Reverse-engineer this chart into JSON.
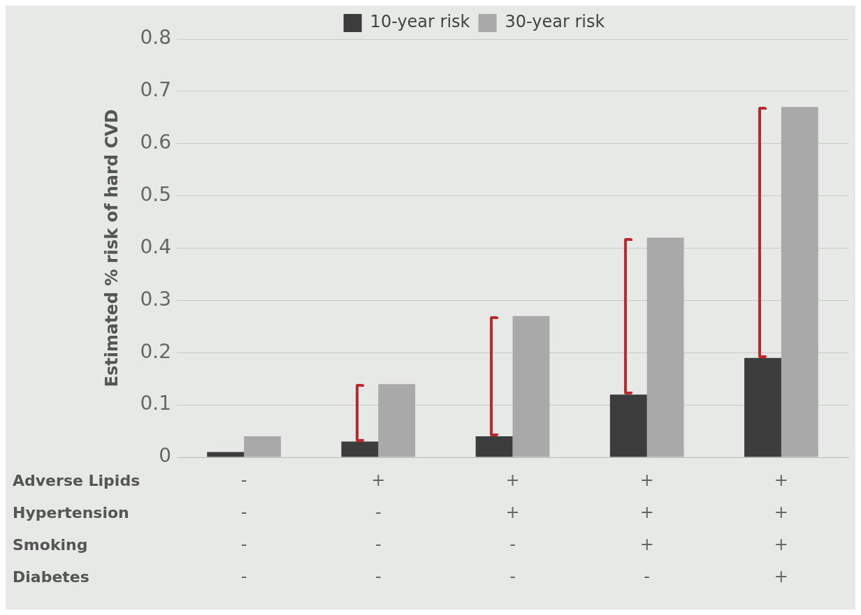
{
  "chart_data": {
    "type": "bar",
    "ylabel": "Estimated % risk of hard CVD",
    "categories": [
      "-\n-\n-\n-",
      "+\n-\n-\n-",
      "+\n+\n-\n-",
      "+\n+\n+\n-",
      "+\n+\n+\n+"
    ],
    "series": [
      {
        "name": "10-year risk",
        "color": "#3c3c3c",
        "values": [
          0.01,
          0.03,
          0.04,
          0.12,
          0.19
        ]
      },
      {
        "name": "30-year risk",
        "color": "#a9a9a9",
        "values": [
          0.04,
          0.14,
          0.27,
          0.42,
          0.67
        ]
      }
    ],
    "ylim": [
      0,
      0.8
    ],
    "yticks": [
      0,
      0.1,
      0.2,
      0.3,
      0.4,
      0.5,
      0.6,
      0.7,
      0.8
    ],
    "grid": "y",
    "legend": "top",
    "annotations": [
      "Adverse Lipids",
      "Hypertension",
      "Smoking",
      "Diabetes"
    ]
  }
}
